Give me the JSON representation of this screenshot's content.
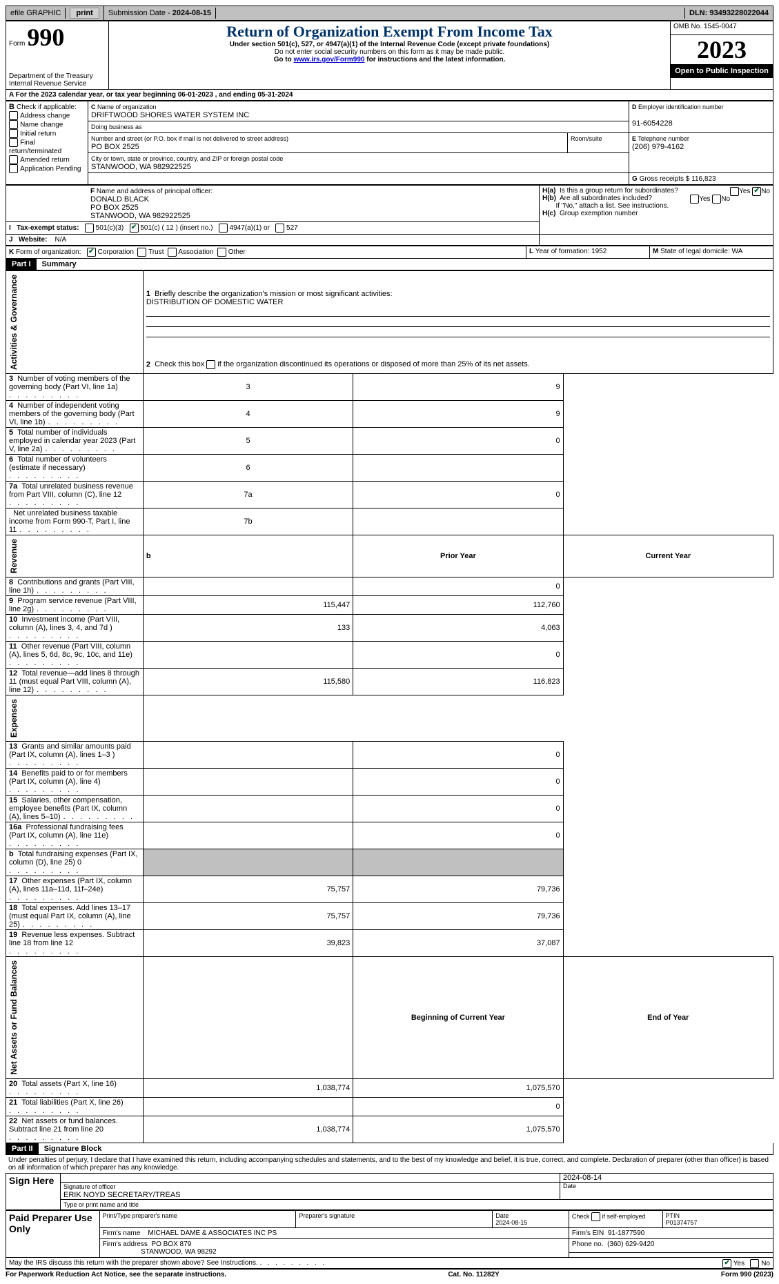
{
  "topbar": {
    "efile": "efile GRAPHIC",
    "print": "print",
    "submission_label": "Submission Date - ",
    "submission_date": "2024-08-15",
    "dln_label": "DLN: ",
    "dln": "93493228022044"
  },
  "header": {
    "form_label": "Form",
    "form_no": "990",
    "title": "Return of Organization Exempt From Income Tax",
    "subtitle": "Under section 501(c), 527, or 4947(a)(1) of the Internal Revenue Code (except private foundations)",
    "warn": "Do not enter social security numbers on this form as it may be made public.",
    "goto_pre": "Go to ",
    "goto_link": "www.irs.gov/Form990",
    "goto_post": " for instructions and the latest information.",
    "dept": "Department of the Treasury",
    "irs": "Internal Revenue Service",
    "omb_label": "OMB No. ",
    "omb": "1545-0047",
    "year": "2023",
    "open": "Open to Public Inspection"
  },
  "periodA": {
    "text_pre": "For the 2023 calendar year, or tax year beginning ",
    "begin": "06-01-2023",
    "text_mid": ", and ending ",
    "end": "05-31-2024"
  },
  "boxB": {
    "label": "Check if applicable:",
    "items": [
      "Address change",
      "Name change",
      "Initial return",
      "Final return/terminated",
      "Amended return",
      "Application Pending"
    ]
  },
  "boxC": {
    "name_label": "Name of organization",
    "name": "DRIFTWOOD SHORES WATER SYSTEM INC",
    "dba_label": "Doing business as",
    "street_label": "Number and street (or P.O. box if mail is not delivered to street address)",
    "street": "PO BOX 2525",
    "room_label": "Room/suite",
    "city_label": "City or town, state or province, country, and ZIP or foreign postal code",
    "city": "STANWOOD, WA   982922525"
  },
  "boxD": {
    "label": "Employer identification number",
    "value": "91-6054228"
  },
  "boxE": {
    "label": "Telephone number",
    "value": "(206) 979-4162"
  },
  "boxG": {
    "label": "Gross receipts $ ",
    "value": "116,823"
  },
  "boxF": {
    "label": "Name and address of principal officer:",
    "name": "DONALD BLACK",
    "street": "PO BOX 2525",
    "city": "STANWOOD, WA   982922525"
  },
  "boxH": {
    "a": "Is this a group return for subordinates?",
    "b": "Are all subordinates included?",
    "b_note": "If \"No,\" attach a list. See instructions.",
    "c": "Group exemption number",
    "yes": "Yes",
    "no": "No"
  },
  "lineI": {
    "label": "Tax-exempt status:",
    "opt1": "501(c)(3)",
    "opt2_pre": "501(c) ( ",
    "opt2_num": "12",
    "opt2_post": " ) (insert no.)",
    "opt3": "4947(a)(1) or",
    "opt4": "527"
  },
  "lineJ": {
    "label": "Website:",
    "value": "N/A"
  },
  "lineK": {
    "label": "Form of organization:",
    "opts": [
      "Corporation",
      "Trust",
      "Association",
      "Other"
    ]
  },
  "lineL": {
    "label": "Year of formation: ",
    "value": "1952"
  },
  "lineM": {
    "label": "State of legal domicile: ",
    "value": "WA"
  },
  "part1": {
    "label": "Part I",
    "title": "Summary",
    "section_labels": {
      "gov": "Activities & Governance",
      "rev": "Revenue",
      "exp": "Expenses",
      "net": "Net Assets or Fund Balances"
    },
    "line1_label": "Briefly describe the organization's mission or most significant activities:",
    "line1_value": "DISTRIBUTION OF DOMESTIC WATER",
    "line2": "Check this box      if the organization discontinued its operations or disposed of more than 25% of its net assets.",
    "rows_gov": [
      {
        "n": "3",
        "text": "Number of voting members of the governing body (Part VI, line 1a)",
        "box": "3",
        "val": "9"
      },
      {
        "n": "4",
        "text": "Number of independent voting members of the governing body (Part VI, line 1b)",
        "box": "4",
        "val": "9"
      },
      {
        "n": "5",
        "text": "Total number of individuals employed in calendar year 2023 (Part V, line 2a)",
        "box": "5",
        "val": "0"
      },
      {
        "n": "6",
        "text": "Total number of volunteers (estimate if necessary)",
        "box": "6",
        "val": ""
      },
      {
        "n": "7a",
        "text": "Total unrelated business revenue from Part VIII, column (C), line 12",
        "box": "7a",
        "val": "0"
      },
      {
        "n": "",
        "text": "Net unrelated business taxable income from Form 990-T, Part I, line 11",
        "box": "7b",
        "val": ""
      }
    ],
    "col_prior": "Prior Year",
    "col_current": "Current Year",
    "col_begin": "Beginning of Current Year",
    "col_end": "End of Year",
    "rows_rev": [
      {
        "n": "8",
        "text": "Contributions and grants (Part VIII, line 1h)",
        "py": "",
        "cy": "0"
      },
      {
        "n": "9",
        "text": "Program service revenue (Part VIII, line 2g)",
        "py": "115,447",
        "cy": "112,760"
      },
      {
        "n": "10",
        "text": "Investment income (Part VIII, column (A), lines 3, 4, and 7d )",
        "py": "133",
        "cy": "4,063"
      },
      {
        "n": "11",
        "text": "Other revenue (Part VIII, column (A), lines 5, 6d, 8c, 9c, 10c, and 11e)",
        "py": "",
        "cy": "0"
      },
      {
        "n": "12",
        "text": "Total revenue—add lines 8 through 11 (must equal Part VIII, column (A), line 12)",
        "py": "115,580",
        "cy": "116,823"
      }
    ],
    "rows_exp": [
      {
        "n": "13",
        "text": "Grants and similar amounts paid (Part IX, column (A), lines 1–3 )",
        "py": "",
        "cy": "0"
      },
      {
        "n": "14",
        "text": "Benefits paid to or for members (Part IX, column (A), line 4)",
        "py": "",
        "cy": "0"
      },
      {
        "n": "15",
        "text": "Salaries, other compensation, employee benefits (Part IX, column (A), lines 5–10)",
        "py": "",
        "cy": "0"
      },
      {
        "n": "16a",
        "text": "Professional fundraising fees (Part IX, column (A), line 11e)",
        "py": "",
        "cy": "0"
      },
      {
        "n": "b",
        "text": "Total fundraising expenses (Part IX, column (D), line 25) 0",
        "py": "GREY",
        "cy": "GREY"
      },
      {
        "n": "17",
        "text": "Other expenses (Part IX, column (A), lines 11a–11d, 11f–24e)",
        "py": "75,757",
        "cy": "79,736"
      },
      {
        "n": "18",
        "text": "Total expenses. Add lines 13–17 (must equal Part IX, column (A), line 25)",
        "py": "75,757",
        "cy": "79,736"
      },
      {
        "n": "19",
        "text": "Revenue less expenses. Subtract line 18 from line 12",
        "py": "39,823",
        "cy": "37,087"
      }
    ],
    "rows_net": [
      {
        "n": "20",
        "text": "Total assets (Part X, line 16)",
        "py": "1,038,774",
        "cy": "1,075,570"
      },
      {
        "n": "21",
        "text": "Total liabilities (Part X, line 26)",
        "py": "",
        "cy": "0"
      },
      {
        "n": "22",
        "text": "Net assets or fund balances. Subtract line 21 from line 20",
        "py": "1,038,774",
        "cy": "1,075,570"
      }
    ]
  },
  "part2": {
    "label": "Part II",
    "title": "Signature Block",
    "declaration": "Under penalties of perjury, I declare that I have examined this return, including accompanying schedules and statements, and to the best of my knowledge and belief, it is true, correct, and complete. Declaration of preparer (other than officer) is based on all information of which preparer has any knowledge.",
    "sign_here": "Sign Here",
    "sig_officer_label": "Signature of officer",
    "sig_date_label": "Date",
    "sig_date": "2024-08-14",
    "officer_name": "ERIK NOYD SECRETARY/TREAS",
    "type_name_label": "Type or print name and title",
    "paid_prep": "Paid Preparer Use Only",
    "prep_name_label": "Print/Type preparer's name",
    "prep_sig_label": "Preparer's signature",
    "prep_date_label": "Date",
    "prep_date": "2024-08-15",
    "check_self": "Check       if self-employed",
    "ptin_label": "PTIN",
    "ptin": "P01374757",
    "firm_name_label": "Firm's name",
    "firm_name": "MICHAEL DAME & ASSOCIATES INC PS",
    "firm_ein_label": "Firm's EIN",
    "firm_ein": "91-1877590",
    "firm_addr_label": "Firm's address",
    "firm_addr1": "PO BOX 879",
    "firm_addr2": "STANWOOD, WA   98292",
    "firm_phone_label": "Phone no.",
    "firm_phone": "(360) 629-9420",
    "may_discuss": "May the IRS discuss this return with the preparer shown above? See Instructions.",
    "yes": "Yes",
    "no": "No"
  },
  "footer": {
    "pra": "For Paperwork Reduction Act Notice, see the separate instructions.",
    "cat": "Cat. No. 11282Y",
    "form": "Form 990 (2023)"
  }
}
